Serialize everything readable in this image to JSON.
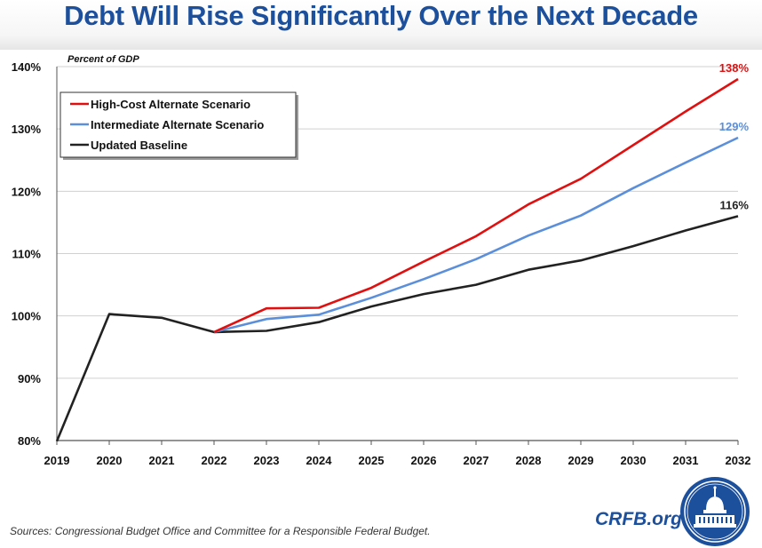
{
  "header": {
    "title": "Debt Will Rise Significantly Over the Next Decade"
  },
  "footer": {
    "source": "Sources: Congressional Budget Office and Committee for a Responsible Federal Budget.",
    "brand": "CRFB.org"
  },
  "colors": {
    "title": "#1c4f9c",
    "high": "#e01010",
    "intermediate": "#5b8fd9",
    "baseline": "#222222"
  },
  "chart_data": {
    "type": "line",
    "title": "Debt Will Rise Significantly Over the Next Decade",
    "ylabel": "Percent of GDP",
    "xlabel": "",
    "x": [
      "2019",
      "2020",
      "2021",
      "2022",
      "2023",
      "2024",
      "2025",
      "2026",
      "2027",
      "2028",
      "2029",
      "2030",
      "2031",
      "2032"
    ],
    "yticks": [
      "80%",
      "90%",
      "100%",
      "110%",
      "120%",
      "130%",
      "140%"
    ],
    "ylim": [
      80,
      140
    ],
    "legend": "top-left",
    "grid": true,
    "series": [
      {
        "name": "High-Cost Alternate Scenario",
        "color": "#e01010",
        "x": [
          "2022",
          "2023",
          "2024",
          "2025",
          "2026",
          "2027",
          "2028",
          "2029",
          "2030",
          "2031",
          "2032"
        ],
        "values": [
          97.4,
          101.2,
          101.3,
          104.5,
          108.7,
          112.8,
          117.9,
          122.0,
          127.4,
          132.8,
          138.0
        ],
        "end_label": "138%"
      },
      {
        "name": "Intermediate Alternate Scenario",
        "color": "#5b8fd9",
        "x": [
          "2022",
          "2023",
          "2024",
          "2025",
          "2026",
          "2027",
          "2028",
          "2029",
          "2030",
          "2031",
          "2032"
        ],
        "values": [
          97.4,
          99.5,
          100.2,
          102.9,
          105.9,
          109.1,
          112.9,
          116.1,
          120.5,
          124.6,
          128.6
        ],
        "end_label": "129%"
      },
      {
        "name": "Updated Baseline",
        "color": "#222222",
        "x": [
          "2019",
          "2020",
          "2021",
          "2022",
          "2023",
          "2024",
          "2025",
          "2026",
          "2027",
          "2028",
          "2029",
          "2030",
          "2031",
          "2032"
        ],
        "values": [
          79.9,
          100.3,
          99.7,
          97.4,
          97.6,
          99.0,
          101.5,
          103.5,
          105.0,
          107.4,
          108.9,
          111.2,
          113.7,
          116.0
        ],
        "end_label": "116%"
      }
    ]
  }
}
